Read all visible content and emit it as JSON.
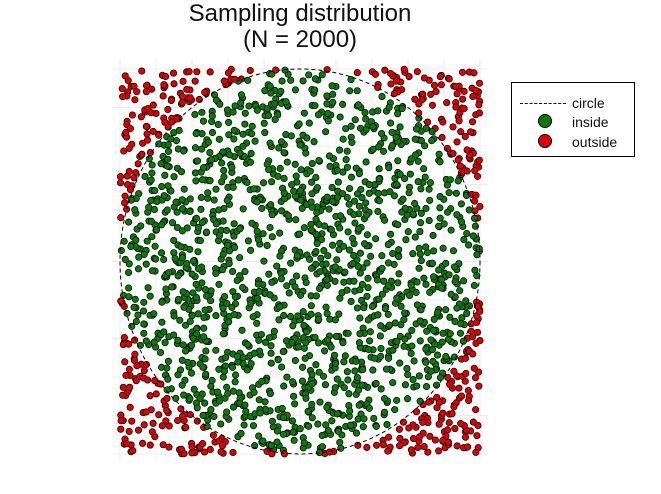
{
  "chart_data": {
    "type": "scatter",
    "title_line1": "Sampling distribution",
    "title_line2": "(N = 2000)",
    "n_points": 2000,
    "xlim": [
      -1,
      1
    ],
    "ylim": [
      -1,
      1
    ],
    "circle": {
      "center": [
        0,
        0
      ],
      "radius": 1,
      "style": "dashed"
    },
    "grid": true,
    "axes_visible": false,
    "legend_placement": "right",
    "series": [
      {
        "name": "circle",
        "kind": "line",
        "color": "#000000"
      },
      {
        "name": "inside",
        "kind": "markers",
        "color": "#0b7a0b",
        "rule": "x^2 + y^2 <= 1"
      },
      {
        "name": "outside",
        "kind": "markers",
        "color": "#e00000",
        "rule": "x^2 + y^2 > 1"
      }
    ]
  }
}
